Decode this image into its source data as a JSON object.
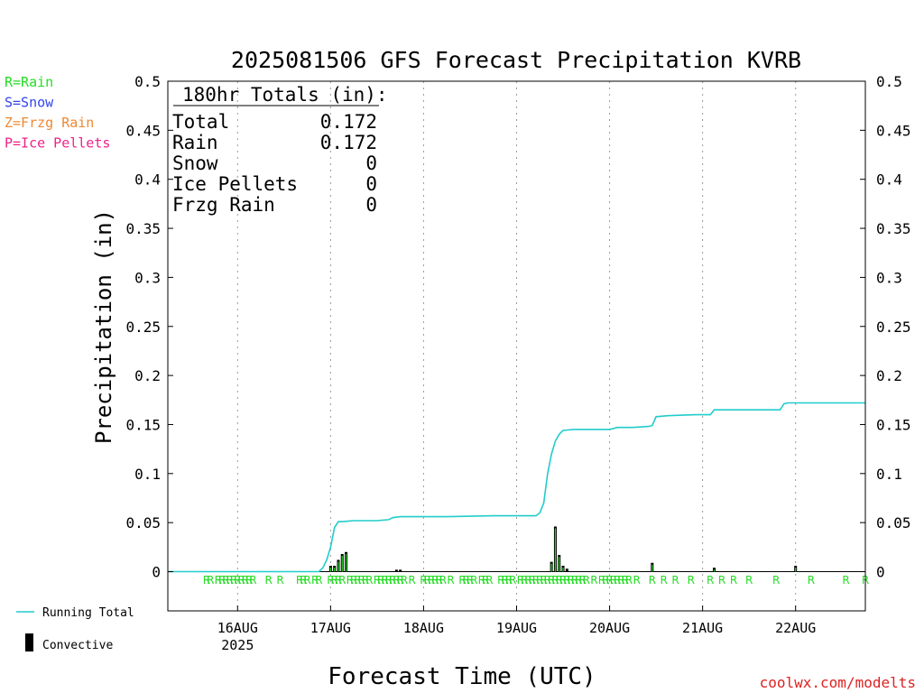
{
  "title": "2025081506 GFS Forecast Precipitation KVRB",
  "xlabel": "Forecast Time (UTC)",
  "ylabel": "Precipitation (in)",
  "credit": "coolwx.com/modelts",
  "type_legend": [
    {
      "label": "R=Rain",
      "color": "#22dd22"
    },
    {
      "label": "S=Snow",
      "color": "#3344ee"
    },
    {
      "label": "Z=Frzg Rain",
      "color": "#ee8833"
    },
    {
      "label": "P=Ice Pellets",
      "color": "#ee2288"
    }
  ],
  "series_legend": {
    "running_total": "Running Total",
    "convective": "Convective",
    "running_total_color": "#22cccc",
    "convective_color": "#000000",
    "rain_color": "#22dd22"
  },
  "totals_box": {
    "header": "180hr Totals (in):",
    "rows": [
      {
        "label": "Total",
        "value": "0.172"
      },
      {
        "label": "Rain",
        "value": "0.172"
      },
      {
        "label": "Snow",
        "value": "0"
      },
      {
        "label": "Ice Pellets",
        "value": "0"
      },
      {
        "label": "Frzg Rain",
        "value": "0"
      }
    ]
  },
  "chart_data": {
    "type": "bar",
    "title": "2025081506 GFS Forecast Precipitation KVRB",
    "xlabel": "Forecast Time (UTC)",
    "ylabel": "Precipitation (in)",
    "x_units": "hours since 2025-08-15 06Z",
    "xlim": [
      0,
      180
    ],
    "ylim": [
      -0.04,
      0.5
    ],
    "yticks": [
      0,
      0.05,
      0.1,
      0.15,
      0.2,
      0.25,
      0.3,
      0.35,
      0.4,
      0.45,
      0.5
    ],
    "ytick_labels": [
      "0",
      "0.05",
      "0.1",
      "0.15",
      "0.2",
      "0.25",
      "0.3",
      "0.35",
      "0.4",
      "0.45",
      "0.5"
    ],
    "xticks": [
      {
        "hour": 18,
        "label": "16AUG",
        "sublabel": "2025"
      },
      {
        "hour": 42,
        "label": "17AUG",
        "sublabel": ""
      },
      {
        "hour": 66,
        "label": "18AUG",
        "sublabel": ""
      },
      {
        "hour": 90,
        "label": "19AUG",
        "sublabel": ""
      },
      {
        "hour": 114,
        "label": "20AUG",
        "sublabel": ""
      },
      {
        "hour": 138,
        "label": "21AUG",
        "sublabel": ""
      },
      {
        "hour": 162,
        "label": "22AUG",
        "sublabel": ""
      }
    ],
    "grid": "vertical dotted at day boundaries",
    "legend_placement": "bottom-left outside",
    "running_total": {
      "name": "Running Total",
      "x": [
        0,
        39,
        40,
        41,
        42,
        43,
        44,
        45,
        48,
        54,
        57,
        58,
        60,
        66,
        72,
        84,
        88,
        95,
        96,
        97,
        98,
        99,
        100,
        101,
        102,
        105,
        110,
        114,
        116,
        120,
        124,
        125,
        126,
        129,
        136,
        140,
        141,
        142,
        158,
        159,
        160,
        180
      ],
      "y": [
        0,
        0,
        0.004,
        0.012,
        0.025,
        0.045,
        0.051,
        0.051,
        0.052,
        0.052,
        0.053,
        0.055,
        0.056,
        0.056,
        0.056,
        0.057,
        0.057,
        0.057,
        0.06,
        0.07,
        0.1,
        0.12,
        0.133,
        0.14,
        0.144,
        0.145,
        0.145,
        0.145,
        0.147,
        0.147,
        0.148,
        0.149,
        0.158,
        0.159,
        0.16,
        0.16,
        0.165,
        0.165,
        0.165,
        0.171,
        0.172,
        0.172
      ]
    },
    "bars": {
      "name": "Convective",
      "hours": [
        42,
        43,
        44,
        45,
        46,
        59,
        60,
        99,
        100,
        101,
        102,
        103,
        125,
        141,
        162
      ],
      "values": [
        0.006,
        0.006,
        0.012,
        0.018,
        0.02,
        0.002,
        0.002,
        0.01,
        0.046,
        0.017,
        0.006,
        0.003,
        0.009,
        0.004,
        0.006
      ]
    },
    "ptype_marks": {
      "label": "R",
      "hours": [
        10,
        11,
        13,
        14,
        15,
        16,
        17,
        18,
        19,
        20,
        21,
        22,
        26,
        29,
        34,
        35,
        36,
        38,
        39,
        42,
        43,
        44,
        45,
        47,
        48,
        49,
        50,
        51,
        52,
        54,
        55,
        56,
        57,
        58,
        59,
        60,
        61,
        63,
        66,
        67,
        68,
        69,
        70,
        71,
        73,
        76,
        77,
        78,
        79,
        81,
        82,
        83,
        86,
        87,
        88,
        89,
        91,
        92,
        93,
        94,
        95,
        96,
        97,
        98,
        99,
        100,
        101,
        102,
        103,
        104,
        105,
        106,
        107,
        108,
        110,
        112,
        113,
        114,
        115,
        116,
        117,
        118,
        119,
        121,
        125,
        128,
        131,
        135,
        140,
        143,
        146,
        150,
        157,
        166,
        175,
        180
      ]
    }
  }
}
